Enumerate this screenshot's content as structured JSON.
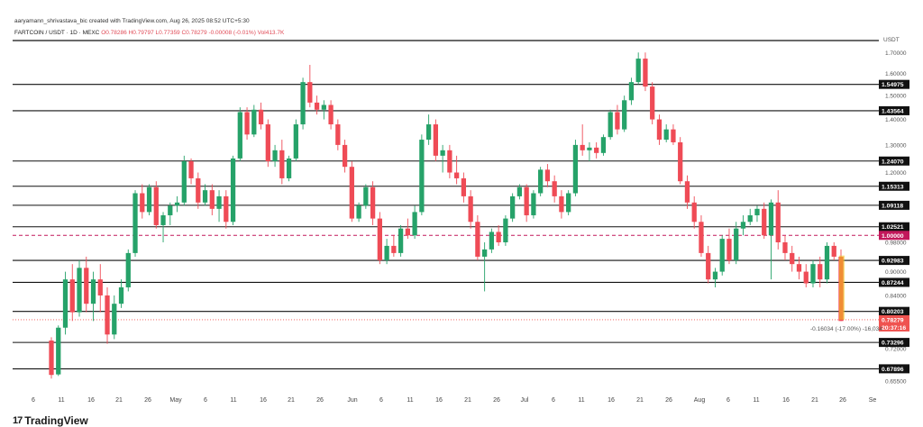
{
  "header": {
    "credit": "aaryamann_shrivastava_bic created with TradingView.com, Aug 26, 2025 08:52 UTC+5:30",
    "symbol": "FARTCOIN / USDT · 1D · MEXC",
    "ohlc": "O0.78286 H0.79797 L0.77359 C0.78279 -0.00008 (-0.01%) Vol413.7K"
  },
  "brand": {
    "name": "TradingView",
    "logo_text": "17"
  },
  "chart_data": {
    "type": "candlestick",
    "ylabel": "USDT",
    "y_scale": "log",
    "ylim": [
      0.64,
      1.78
    ],
    "y_ticks": [
      "1.70000",
      "1.60000",
      "1.50000",
      "1.40000",
      "1.30000",
      "1.20000",
      "1.10000",
      "1.02500",
      "0.98000",
      "0.90000",
      "0.84000",
      "0.78000",
      "0.72000",
      "0.65500"
    ],
    "x_labels": [
      "6",
      "11",
      "16",
      "21",
      "26",
      "May",
      "6",
      "11",
      "16",
      "21",
      "26",
      "Jun",
      "6",
      "11",
      "16",
      "21",
      "26",
      "Jul",
      "6",
      "11",
      "16",
      "21",
      "26",
      "Aug",
      "6",
      "11",
      "16",
      "21",
      "26",
      "Se"
    ],
    "levels": [
      {
        "value": 1.54975,
        "label": "1.54975"
      },
      {
        "value": 1.43564,
        "label": "1.43564"
      },
      {
        "value": 1.2407,
        "label": "1.24070"
      },
      {
        "value": 1.15313,
        "label": "1.15313"
      },
      {
        "value": 1.09118,
        "label": "1.09118"
      },
      {
        "value": 1.02521,
        "label": "1.02521"
      },
      {
        "value": 0.92983,
        "label": "0.92983"
      },
      {
        "value": 0.87244,
        "label": "0.87244"
      },
      {
        "value": 0.80203,
        "label": "0.80203"
      },
      {
        "value": 0.73296,
        "label": "0.73296"
      },
      {
        "value": 0.67896,
        "label": "0.67896"
      }
    ],
    "reference_line": {
      "value": 1.0,
      "label": "1.00000",
      "color": "#c2185b"
    },
    "last_price": {
      "value": 0.78279,
      "label": "0.78279",
      "countdown": "20:37:16",
      "color": "#ef5350"
    },
    "measurement": {
      "label": "-0.16034 (-17.00%) -16,034",
      "from": 0.9431,
      "to": 0.78279
    },
    "colors": {
      "up": "#26a269",
      "down": "#ef4b56",
      "level": "#111111",
      "measure": "#f0c419"
    },
    "candles": [
      [
        0.737,
        0.744,
        0.66,
        0.667
      ],
      [
        0.668,
        0.77,
        0.665,
        0.765
      ],
      [
        0.765,
        0.9,
        0.75,
        0.88
      ],
      [
        0.88,
        0.92,
        0.78,
        0.8
      ],
      [
        0.8,
        0.93,
        0.79,
        0.91
      ],
      [
        0.91,
        0.94,
        0.8,
        0.82
      ],
      [
        0.82,
        0.9,
        0.78,
        0.88
      ],
      [
        0.88,
        0.92,
        0.8,
        0.84
      ],
      [
        0.84,
        0.86,
        0.73,
        0.75
      ],
      [
        0.75,
        0.84,
        0.74,
        0.82
      ],
      [
        0.82,
        0.88,
        0.81,
        0.86
      ],
      [
        0.86,
        0.96,
        0.85,
        0.95
      ],
      [
        0.95,
        1.14,
        0.94,
        1.13
      ],
      [
        1.13,
        1.16,
        1.05,
        1.07
      ],
      [
        1.07,
        1.16,
        1.06,
        1.15
      ],
      [
        1.15,
        1.17,
        1.02,
        1.03
      ],
      [
        1.03,
        1.07,
        0.98,
        1.06
      ],
      [
        1.06,
        1.1,
        1.03,
        1.09
      ],
      [
        1.09,
        1.12,
        1.07,
        1.1
      ],
      [
        1.1,
        1.26,
        1.09,
        1.24
      ],
      [
        1.24,
        1.25,
        1.16,
        1.18
      ],
      [
        1.18,
        1.2,
        1.08,
        1.1
      ],
      [
        1.1,
        1.16,
        1.09,
        1.14
      ],
      [
        1.14,
        1.16,
        1.06,
        1.08
      ],
      [
        1.08,
        1.14,
        1.04,
        1.12
      ],
      [
        1.12,
        1.14,
        1.02,
        1.04
      ],
      [
        1.04,
        1.26,
        1.03,
        1.25
      ],
      [
        1.25,
        1.45,
        1.24,
        1.43
      ],
      [
        1.43,
        1.45,
        1.32,
        1.34
      ],
      [
        1.34,
        1.46,
        1.33,
        1.44
      ],
      [
        1.44,
        1.47,
        1.36,
        1.38
      ],
      [
        1.38,
        1.4,
        1.22,
        1.24
      ],
      [
        1.24,
        1.3,
        1.22,
        1.28
      ],
      [
        1.28,
        1.32,
        1.16,
        1.18
      ],
      [
        1.18,
        1.26,
        1.17,
        1.25
      ],
      [
        1.25,
        1.4,
        1.24,
        1.38
      ],
      [
        1.38,
        1.58,
        1.36,
        1.56
      ],
      [
        1.56,
        1.64,
        1.45,
        1.47
      ],
      [
        1.47,
        1.5,
        1.42,
        1.44
      ],
      [
        1.44,
        1.48,
        1.4,
        1.46
      ],
      [
        1.46,
        1.48,
        1.36,
        1.38
      ],
      [
        1.38,
        1.4,
        1.28,
        1.3
      ],
      [
        1.3,
        1.32,
        1.2,
        1.22
      ],
      [
        1.22,
        1.24,
        1.04,
        1.05
      ],
      [
        1.05,
        1.1,
        1.04,
        1.09
      ],
      [
        1.09,
        1.16,
        1.08,
        1.15
      ],
      [
        1.15,
        1.17,
        1.03,
        1.05
      ],
      [
        1.05,
        1.07,
        0.92,
        0.93
      ],
      [
        0.93,
        0.99,
        0.92,
        0.97
      ],
      [
        0.97,
        1.0,
        0.94,
        0.95
      ],
      [
        0.95,
        1.03,
        0.94,
        1.02
      ],
      [
        1.02,
        1.05,
        0.99,
        1.0
      ],
      [
        1.0,
        1.09,
        0.99,
        1.07
      ],
      [
        1.07,
        1.34,
        1.06,
        1.32
      ],
      [
        1.32,
        1.42,
        1.3,
        1.38
      ],
      [
        1.38,
        1.4,
        1.24,
        1.26
      ],
      [
        1.26,
        1.3,
        1.2,
        1.28
      ],
      [
        1.28,
        1.3,
        1.18,
        1.2
      ],
      [
        1.2,
        1.26,
        1.16,
        1.18
      ],
      [
        1.18,
        1.2,
        1.1,
        1.12
      ],
      [
        1.12,
        1.14,
        1.02,
        1.04
      ],
      [
        1.04,
        1.06,
        0.93,
        0.94
      ],
      [
        0.94,
        0.98,
        0.85,
        0.96
      ],
      [
        0.96,
        1.02,
        0.95,
        1.01
      ],
      [
        1.01,
        1.03,
        0.97,
        0.98
      ],
      [
        0.98,
        1.06,
        0.97,
        1.05
      ],
      [
        1.05,
        1.13,
        1.04,
        1.12
      ],
      [
        1.12,
        1.16,
        1.11,
        1.15
      ],
      [
        1.15,
        1.16,
        1.04,
        1.06
      ],
      [
        1.06,
        1.14,
        1.05,
        1.13
      ],
      [
        1.13,
        1.22,
        1.12,
        1.21
      ],
      [
        1.21,
        1.23,
        1.15,
        1.17
      ],
      [
        1.17,
        1.19,
        1.1,
        1.12
      ],
      [
        1.12,
        1.14,
        1.05,
        1.07
      ],
      [
        1.07,
        1.14,
        1.06,
        1.13
      ],
      [
        1.13,
        1.32,
        1.12,
        1.3
      ],
      [
        1.3,
        1.38,
        1.26,
        1.28
      ],
      [
        1.28,
        1.31,
        1.24,
        1.29
      ],
      [
        1.29,
        1.31,
        1.25,
        1.27
      ],
      [
        1.27,
        1.34,
        1.26,
        1.33
      ],
      [
        1.33,
        1.44,
        1.32,
        1.43
      ],
      [
        1.43,
        1.46,
        1.34,
        1.36
      ],
      [
        1.36,
        1.5,
        1.35,
        1.48
      ],
      [
        1.48,
        1.58,
        1.46,
        1.56
      ],
      [
        1.56,
        1.7,
        1.55,
        1.67
      ],
      [
        1.67,
        1.7,
        1.52,
        1.54
      ],
      [
        1.54,
        1.56,
        1.38,
        1.4
      ],
      [
        1.4,
        1.42,
        1.3,
        1.32
      ],
      [
        1.32,
        1.38,
        1.31,
        1.36
      ],
      [
        1.36,
        1.38,
        1.3,
        1.31
      ],
      [
        1.31,
        1.33,
        1.16,
        1.17
      ],
      [
        1.17,
        1.19,
        1.08,
        1.1
      ],
      [
        1.1,
        1.12,
        1.02,
        1.04
      ],
      [
        1.04,
        1.06,
        0.94,
        0.95
      ],
      [
        0.95,
        0.97,
        0.87,
        0.88
      ],
      [
        0.88,
        0.91,
        0.86,
        0.9
      ],
      [
        0.9,
        1.0,
        0.89,
        0.99
      ],
      [
        0.99,
        1.02,
        0.92,
        0.93
      ],
      [
        0.93,
        1.04,
        0.92,
        1.02
      ],
      [
        1.02,
        1.06,
        1.0,
        1.04
      ],
      [
        1.04,
        1.08,
        1.03,
        1.06
      ],
      [
        1.06,
        1.09,
        1.04,
        1.08
      ],
      [
        1.08,
        1.1,
        0.99,
        1.0
      ],
      [
        1.0,
        1.11,
        0.88,
        1.1
      ],
      [
        1.1,
        1.14,
        0.96,
        0.98
      ],
      [
        0.98,
        1.0,
        0.93,
        0.95
      ],
      [
        0.95,
        0.97,
        0.9,
        0.92
      ],
      [
        0.92,
        0.94,
        0.88,
        0.9
      ],
      [
        0.9,
        0.92,
        0.86,
        0.87
      ],
      [
        0.87,
        0.93,
        0.86,
        0.92
      ],
      [
        0.92,
        0.94,
        0.86,
        0.88
      ],
      [
        0.88,
        0.98,
        0.87,
        0.97
      ],
      [
        0.97,
        0.98,
        0.93,
        0.94
      ],
      [
        0.94,
        0.96,
        0.78,
        0.78
      ]
    ]
  }
}
